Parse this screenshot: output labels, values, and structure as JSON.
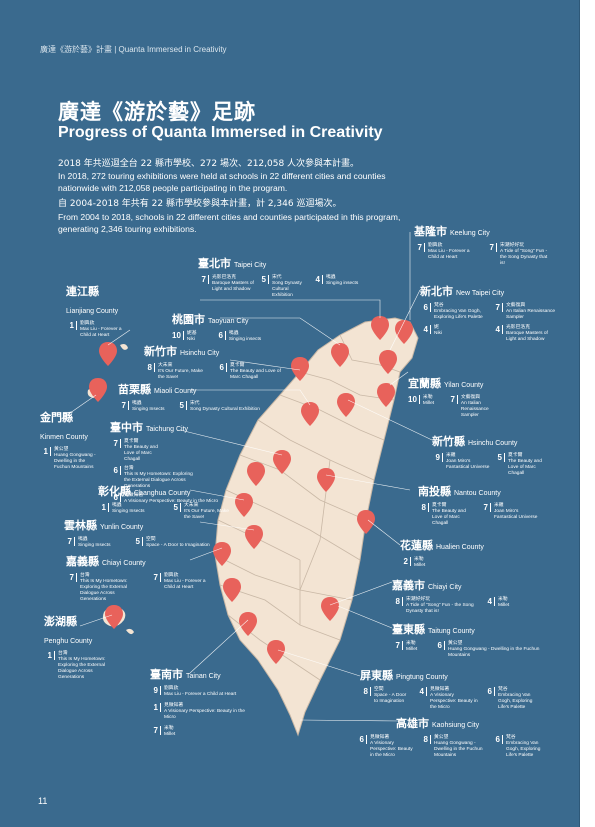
{
  "header": {
    "label": "廣達《游於藝》計畫 | Quanta Immersed in Creativity"
  },
  "title": {
    "zh": "廣達《游於藝》足跡",
    "en": "Progress of Quanta Immersed in Creativity"
  },
  "intro": {
    "zh1": "2018 年共巡迴全台 22 縣市學校、272 場次、212,058 人次參與本計畫。",
    "en1": "In 2018, 272 touring exhibitions were held at schools in 22 different cities and counties nationwide with 212,058 people participating in the program.",
    "zh2": "自 2004-2018 年共有 22 縣市學校參與本計畫，計 2,346 巡迴場次。",
    "en2": "From 2004 to 2018, schools in 22 different cities and counties participated in this program, generating 2,346 touring exhibitions."
  },
  "page_number": "11",
  "colors": {
    "panel": "#3a6a8e",
    "land": "#f3e4d3",
    "pin": "#e8625b",
    "text": "#ffffff"
  },
  "regions": [
    {
      "zh": "基隆市",
      "en": "Keelung City",
      "entries": [
        {
          "n": "7",
          "zh": "劉興欽",
          "en": "Max Liu - Forever a Child at Heart"
        },
        {
          "n": "7",
          "zh": "宋潮好好玩",
          "en": "A Tide of \"Song\" Fun - the Song Dynasty that is!"
        }
      ]
    },
    {
      "zh": "臺北市",
      "en": "Taipei City",
      "entries": [
        {
          "n": "7",
          "zh": "光影巴洛克",
          "en": "Baroque Masters of Light and Shadow"
        },
        {
          "n": "5",
          "zh": "宋代",
          "en": "Song Dynasty Cultural Exhibition"
        },
        {
          "n": "4",
          "zh": "鳴蟲",
          "en": "Singing insects"
        }
      ]
    },
    {
      "zh": "新北市",
      "en": "New Taipei City",
      "entries": [
        {
          "n": "6",
          "zh": "梵谷",
          "en": "Embracing Van Gogh, Exploring Life's Palette"
        },
        {
          "n": "7",
          "zh": "文藝復興",
          "en": "An Italian Renaissance Sampler"
        },
        {
          "n": "4",
          "zh": "光影巴洛克",
          "en": "Baroque Masters of Light and Shadow"
        },
        {
          "n": "4",
          "zh": "妮",
          "en": "Niki"
        }
      ]
    },
    {
      "zh": "連江縣",
      "en": "Lianjiang County",
      "entries": [
        {
          "n": "1",
          "zh": "劉興欽",
          "en": "Max Liu - Forever a Child at Heart"
        }
      ]
    },
    {
      "zh": "桃園市",
      "en": "Taoyuan City",
      "entries": [
        {
          "n": "10",
          "zh": "妮基",
          "en": "Niki"
        },
        {
          "n": "6",
          "zh": "鳴蟲",
          "en": "Singing insects"
        }
      ]
    },
    {
      "zh": "新竹市",
      "en": "Hsinchu City",
      "entries": [
        {
          "n": "8",
          "zh": "大未來",
          "en": "It's Our Future, Make the Save!"
        },
        {
          "n": "6",
          "zh": "夏卡爾",
          "en": "The Beauty and Love of Marc Chagall"
        }
      ]
    },
    {
      "zh": "宜蘭縣",
      "en": "Yilan County",
      "entries": [
        {
          "n": "10",
          "zh": "米勒",
          "en": "Millet"
        },
        {
          "n": "7",
          "zh": "文藝復興",
          "en": "An Italian Renaissance Sampler"
        }
      ]
    },
    {
      "zh": "苗栗縣",
      "en": "Miaoli County",
      "entries": [
        {
          "n": "7",
          "zh": "鳴蟲",
          "en": "Singing Insects"
        },
        {
          "n": "5",
          "zh": "宋代",
          "en": "Song Dynasty Cultural Exhibition"
        }
      ]
    },
    {
      "zh": "金門縣",
      "en": "Kinmen County",
      "entries": [
        {
          "n": "1",
          "zh": "黃公望",
          "en": "Huang Gongwang - Dwelling in the Fuchun Mountains"
        }
      ]
    },
    {
      "zh": "臺中市",
      "en": "Taichung City",
      "entries": [
        {
          "n": "7",
          "zh": "夏卡爾",
          "en": "The Beauty and Love of Marc Chagall"
        },
        {
          "n": "6",
          "zh": "台灣",
          "en": "This Is My Hometown: Exploring the External Dialogue Across Generations"
        },
        {
          "n": "6",
          "zh": "見微知著",
          "en": "A Visionary Perspective: Beauty in the Micro"
        }
      ]
    },
    {
      "zh": "新竹縣",
      "en": "Hsinchu County",
      "entries": [
        {
          "n": "9",
          "zh": "米羅",
          "en": "Joan Miro's Fantastical Universe"
        },
        {
          "n": "5",
          "zh": "夏卡爾",
          "en": "The Beauty and Love of Marc Chagall"
        }
      ]
    },
    {
      "zh": "彰化縣",
      "en": "Changhua County",
      "entries": [
        {
          "n": "1",
          "zh": "鳴蟲",
          "en": "Singing Insects"
        },
        {
          "n": "5",
          "zh": "大未來",
          "en": "It's Our Future, Make the Save!"
        }
      ]
    },
    {
      "zh": "南投縣",
      "en": "Nantou County",
      "entries": [
        {
          "n": "8",
          "zh": "夏卡爾",
          "en": "The Beauty and Love of Marc Chagall"
        },
        {
          "n": "7",
          "zh": "米羅",
          "en": "Joan Miro's Fantastical Universe"
        }
      ]
    },
    {
      "zh": "雲林縣",
      "en": "Yunlin County",
      "entries": [
        {
          "n": "7",
          "zh": "鳴蟲",
          "en": "Singing Insects"
        },
        {
          "n": "5",
          "zh": "空間",
          "en": "Space - A Door to Imagination"
        }
      ]
    },
    {
      "zh": "花蓮縣",
      "en": "Hualien County",
      "entries": [
        {
          "n": "2",
          "zh": "米勒",
          "en": "Millet"
        }
      ]
    },
    {
      "zh": "嘉義縣",
      "en": "Chiayi County",
      "entries": [
        {
          "n": "7",
          "zh": "台灣",
          "en": "This Is My Hometown: Exploring the External Dialogue Across Generations"
        },
        {
          "n": "7",
          "zh": "劉興欽",
          "en": "Max Liu - Forever a Child at Heart"
        }
      ]
    },
    {
      "zh": "嘉義市",
      "en": "Chiayi City",
      "entries": [
        {
          "n": "8",
          "zh": "宋潮好好玩",
          "en": "A Tide of \"Song\" Fun - the Song Dynasty that is!"
        },
        {
          "n": "4",
          "zh": "米勒",
          "en": "Millet"
        }
      ]
    },
    {
      "zh": "澎湖縣",
      "en": "Penghu County",
      "entries": [
        {
          "n": "1",
          "zh": "台灣",
          "en": "This Is My Hometown: Exploring the External Dialogue Across Generations"
        }
      ]
    },
    {
      "zh": "臺東縣",
      "en": "Taitung County",
      "entries": [
        {
          "n": "7",
          "zh": "米勒",
          "en": "Millet"
        },
        {
          "n": "6",
          "zh": "黃公望",
          "en": "Huang Gongwang - Dwelling in the Fuchun Mountains"
        }
      ]
    },
    {
      "zh": "屏東縣",
      "en": "Pingtung County",
      "entries": [
        {
          "n": "8",
          "zh": "空間",
          "en": "Space - A Door to Imagination"
        },
        {
          "n": "4",
          "zh": "見微知著",
          "en": "A Visionary Perspective: Beauty in the Micro"
        },
        {
          "n": "6",
          "zh": "梵谷",
          "en": "Embracing Van Gogh, Exploring Life's Palette"
        }
      ]
    },
    {
      "zh": "臺南市",
      "en": "Tainan City",
      "entries": [
        {
          "n": "9",
          "zh": "劉興欽",
          "en": "Max Liu - Forever a Child at Heart"
        },
        {
          "n": "1",
          "zh": "見微知著",
          "en": "A Visionary Perspective: Beauty in the Micro"
        },
        {
          "n": "7",
          "zh": "米勒",
          "en": "Millet"
        }
      ]
    },
    {
      "zh": "高雄市",
      "en": "Kaohsiung City",
      "entries": [
        {
          "n": "6",
          "zh": "見微知著",
          "en": "A Visionary Perspective: Beauty in the Micro"
        },
        {
          "n": "8",
          "zh": "黃公望",
          "en": "Huang Gongwang - Dwelling in the Fuchun Mountains"
        },
        {
          "n": "6",
          "zh": "梵谷",
          "en": "Embracing Van Gogh, Exploring Life's Palette"
        }
      ]
    }
  ]
}
